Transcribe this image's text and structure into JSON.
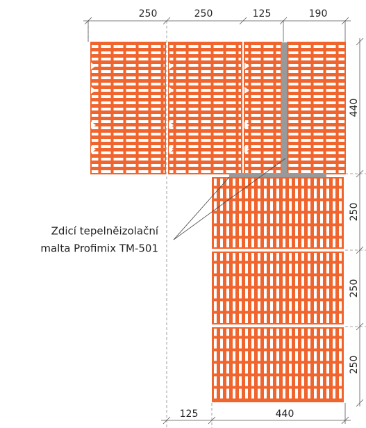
{
  "dimensions": {
    "top": [
      250,
      250,
      125,
      190
    ],
    "right": [
      440,
      250,
      250,
      250
    ],
    "bottom": [
      125,
      440
    ]
  },
  "label": {
    "lines": [
      "Zdicí tepelněizolační",
      "malta Profimix TM-501"
    ]
  }
}
